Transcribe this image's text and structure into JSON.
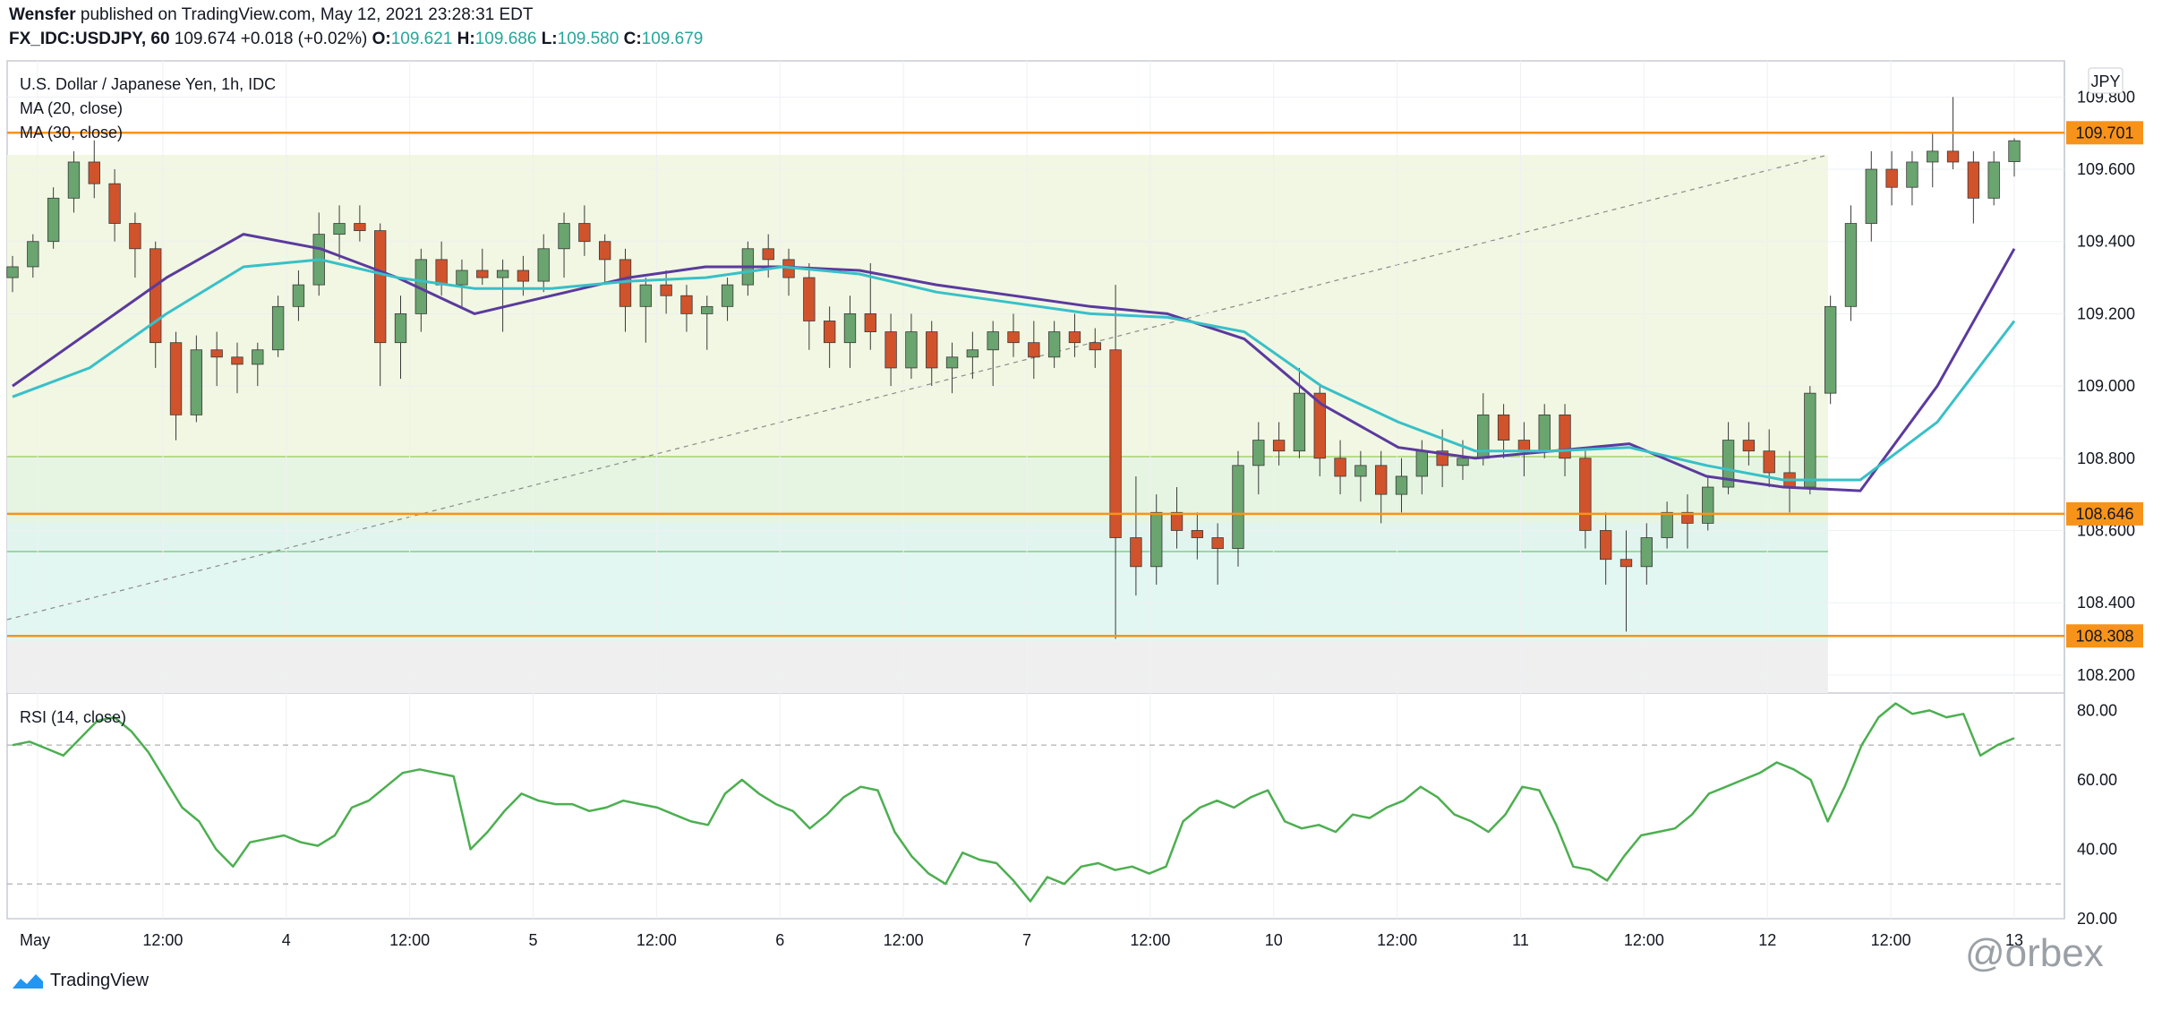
{
  "header": {
    "author": "Wensfer",
    "published_text": "published on TradingView.com, May 12, 2021 23:28:31 EDT",
    "symbol_line": "FX_IDC:USDJPY, 60",
    "price": "109.674",
    "change": "+0.018 (+0.02%)",
    "o_label": "O:",
    "o_value": "109.621",
    "h_label": "H:",
    "h_value": "109.686",
    "l_label": "L:",
    "l_value": "109.580",
    "c_label": "C:",
    "c_value": "109.679"
  },
  "main_pane": {
    "title": "U.S. Dollar / Japanese Yen, 1h, IDC",
    "ma1": "MA (20, close)",
    "ma2": "MA (30, close)",
    "currency": "JPY"
  },
  "rsi_pane": {
    "title": "RSI (14, close)"
  },
  "footer": {
    "brand": "TradingView",
    "watermark": "@orbex"
  },
  "colors": {
    "up": "#6aa46f",
    "down": "#d0532c",
    "ma20": "#5b3a9e",
    "ma30": "#38c0c8",
    "level": "#f7931a",
    "rsi": "#4caf50"
  },
  "chart_data": [
    {
      "type": "candlestick",
      "title": "U.S. Dollar / Japanese Yen, 1h, IDC",
      "ylabel": "JPY",
      "ylim": [
        108.15,
        109.9
      ],
      "y_ticks": [
        "109.800",
        "109.600",
        "109.400",
        "109.200",
        "109.000",
        "108.800",
        "108.600",
        "108.400",
        "108.200"
      ],
      "x_ticks": [
        "May",
        "12:00",
        "4",
        "12:00",
        "5",
        "12:00",
        "6",
        "12:00",
        "7",
        "12:00",
        "10",
        "12:00",
        "11",
        "12:00",
        "12",
        "12:00",
        "13"
      ],
      "price_levels": [
        {
          "label": "109.701",
          "value": 109.701
        },
        {
          "label": "108.646",
          "value": 108.646
        },
        {
          "label": "108.308",
          "value": 108.308
        }
      ],
      "series": [
        {
          "name": "MA (20, close)",
          "values": [
            109.0,
            109.15,
            109.3,
            109.42,
            109.38,
            109.3,
            109.2,
            109.25,
            109.3,
            109.33,
            109.33,
            109.32,
            109.28,
            109.25,
            109.22,
            109.2,
            109.13,
            108.95,
            108.83,
            108.8,
            108.82,
            108.84,
            108.75,
            108.72,
            108.71,
            109.0,
            109.38
          ]
        },
        {
          "name": "MA (30, close)",
          "values": [
            108.97,
            109.05,
            109.2,
            109.33,
            109.35,
            109.3,
            109.27,
            109.27,
            109.29,
            109.3,
            109.33,
            109.31,
            109.26,
            109.23,
            109.2,
            109.19,
            109.15,
            109.0,
            108.9,
            108.82,
            108.82,
            108.83,
            108.78,
            108.74,
            108.74,
            108.9,
            109.18
          ]
        }
      ],
      "ohlc": [
        {
          "o": 109.3,
          "h": 109.36,
          "l": 109.26,
          "c": 109.33
        },
        {
          "o": 109.33,
          "h": 109.42,
          "l": 109.3,
          "c": 109.4
        },
        {
          "o": 109.4,
          "h": 109.55,
          "l": 109.38,
          "c": 109.52
        },
        {
          "o": 109.52,
          "h": 109.65,
          "l": 109.48,
          "c": 109.62
        },
        {
          "o": 109.62,
          "h": 109.68,
          "l": 109.52,
          "c": 109.56
        },
        {
          "o": 109.56,
          "h": 109.6,
          "l": 109.4,
          "c": 109.45
        },
        {
          "o": 109.45,
          "h": 109.48,
          "l": 109.3,
          "c": 109.38
        },
        {
          "o": 109.38,
          "h": 109.4,
          "l": 109.05,
          "c": 109.12
        },
        {
          "o": 109.12,
          "h": 109.15,
          "l": 108.85,
          "c": 108.92
        },
        {
          "o": 108.92,
          "h": 109.14,
          "l": 108.9,
          "c": 109.1
        },
        {
          "o": 109.1,
          "h": 109.15,
          "l": 109.0,
          "c": 109.08
        },
        {
          "o": 109.08,
          "h": 109.12,
          "l": 108.98,
          "c": 109.06
        },
        {
          "o": 109.06,
          "h": 109.12,
          "l": 109.0,
          "c": 109.1
        },
        {
          "o": 109.1,
          "h": 109.25,
          "l": 109.08,
          "c": 109.22
        },
        {
          "o": 109.22,
          "h": 109.32,
          "l": 109.18,
          "c": 109.28
        },
        {
          "o": 109.28,
          "h": 109.48,
          "l": 109.25,
          "c": 109.42
        },
        {
          "o": 109.42,
          "h": 109.5,
          "l": 109.35,
          "c": 109.45
        },
        {
          "o": 109.45,
          "h": 109.5,
          "l": 109.4,
          "c": 109.43
        },
        {
          "o": 109.43,
          "h": 109.45,
          "l": 109.0,
          "c": 109.12
        },
        {
          "o": 109.12,
          "h": 109.25,
          "l": 109.02,
          "c": 109.2
        },
        {
          "o": 109.2,
          "h": 109.38,
          "l": 109.15,
          "c": 109.35
        },
        {
          "o": 109.35,
          "h": 109.4,
          "l": 109.25,
          "c": 109.28
        },
        {
          "o": 109.28,
          "h": 109.35,
          "l": 109.22,
          "c": 109.32
        },
        {
          "o": 109.32,
          "h": 109.38,
          "l": 109.28,
          "c": 109.3
        },
        {
          "o": 109.3,
          "h": 109.35,
          "l": 109.15,
          "c": 109.32
        },
        {
          "o": 109.32,
          "h": 109.36,
          "l": 109.25,
          "c": 109.29
        },
        {
          "o": 109.29,
          "h": 109.42,
          "l": 109.26,
          "c": 109.38
        },
        {
          "o": 109.38,
          "h": 109.48,
          "l": 109.3,
          "c": 109.45
        },
        {
          "o": 109.45,
          "h": 109.5,
          "l": 109.36,
          "c": 109.4
        },
        {
          "o": 109.4,
          "h": 109.42,
          "l": 109.28,
          "c": 109.35
        },
        {
          "o": 109.35,
          "h": 109.38,
          "l": 109.15,
          "c": 109.22
        },
        {
          "o": 109.22,
          "h": 109.3,
          "l": 109.12,
          "c": 109.28
        },
        {
          "o": 109.28,
          "h": 109.32,
          "l": 109.2,
          "c": 109.25
        },
        {
          "o": 109.25,
          "h": 109.28,
          "l": 109.15,
          "c": 109.2
        },
        {
          "o": 109.2,
          "h": 109.25,
          "l": 109.1,
          "c": 109.22
        },
        {
          "o": 109.22,
          "h": 109.3,
          "l": 109.18,
          "c": 109.28
        },
        {
          "o": 109.28,
          "h": 109.4,
          "l": 109.25,
          "c": 109.38
        },
        {
          "o": 109.38,
          "h": 109.42,
          "l": 109.3,
          "c": 109.35
        },
        {
          "o": 109.35,
          "h": 109.38,
          "l": 109.25,
          "c": 109.3
        },
        {
          "o": 109.3,
          "h": 109.34,
          "l": 109.1,
          "c": 109.18
        },
        {
          "o": 109.18,
          "h": 109.22,
          "l": 109.05,
          "c": 109.12
        },
        {
          "o": 109.12,
          "h": 109.25,
          "l": 109.05,
          "c": 109.2
        },
        {
          "o": 109.2,
          "h": 109.34,
          "l": 109.1,
          "c": 109.15
        },
        {
          "o": 109.15,
          "h": 109.2,
          "l": 109.0,
          "c": 109.05
        },
        {
          "o": 109.05,
          "h": 109.2,
          "l": 109.02,
          "c": 109.15
        },
        {
          "o": 109.15,
          "h": 109.18,
          "l": 109.0,
          "c": 109.05
        },
        {
          "o": 109.05,
          "h": 109.12,
          "l": 108.98,
          "c": 109.08
        },
        {
          "o": 109.08,
          "h": 109.15,
          "l": 109.02,
          "c": 109.1
        },
        {
          "o": 109.1,
          "h": 109.18,
          "l": 109.0,
          "c": 109.15
        },
        {
          "o": 109.15,
          "h": 109.2,
          "l": 109.08,
          "c": 109.12
        },
        {
          "o": 109.12,
          "h": 109.18,
          "l": 109.02,
          "c": 109.08
        },
        {
          "o": 109.08,
          "h": 109.18,
          "l": 109.05,
          "c": 109.15
        },
        {
          "o": 109.15,
          "h": 109.2,
          "l": 109.08,
          "c": 109.12
        },
        {
          "o": 109.12,
          "h": 109.16,
          "l": 109.05,
          "c": 109.1
        },
        {
          "o": 109.1,
          "h": 109.28,
          "l": 108.3,
          "c": 108.58
        },
        {
          "o": 108.58,
          "h": 108.75,
          "l": 108.42,
          "c": 108.5
        },
        {
          "o": 108.5,
          "h": 108.7,
          "l": 108.45,
          "c": 108.65
        },
        {
          "o": 108.65,
          "h": 108.72,
          "l": 108.55,
          "c": 108.6
        },
        {
          "o": 108.6,
          "h": 108.65,
          "l": 108.52,
          "c": 108.58
        },
        {
          "o": 108.58,
          "h": 108.62,
          "l": 108.45,
          "c": 108.55
        },
        {
          "o": 108.55,
          "h": 108.82,
          "l": 108.5,
          "c": 108.78
        },
        {
          "o": 108.78,
          "h": 108.9,
          "l": 108.7,
          "c": 108.85
        },
        {
          "o": 108.85,
          "h": 108.9,
          "l": 108.78,
          "c": 108.82
        },
        {
          "o": 108.82,
          "h": 109.05,
          "l": 108.8,
          "c": 108.98
        },
        {
          "o": 108.98,
          "h": 109.0,
          "l": 108.75,
          "c": 108.8
        },
        {
          "o": 108.8,
          "h": 108.85,
          "l": 108.7,
          "c": 108.75
        },
        {
          "o": 108.75,
          "h": 108.82,
          "l": 108.68,
          "c": 108.78
        },
        {
          "o": 108.78,
          "h": 108.82,
          "l": 108.62,
          "c": 108.7
        },
        {
          "o": 108.7,
          "h": 108.8,
          "l": 108.65,
          "c": 108.75
        },
        {
          "o": 108.75,
          "h": 108.85,
          "l": 108.7,
          "c": 108.82
        },
        {
          "o": 108.82,
          "h": 108.88,
          "l": 108.72,
          "c": 108.78
        },
        {
          "o": 108.78,
          "h": 108.85,
          "l": 108.74,
          "c": 108.8
        },
        {
          "o": 108.8,
          "h": 108.98,
          "l": 108.78,
          "c": 108.92
        },
        {
          "o": 108.92,
          "h": 108.95,
          "l": 108.8,
          "c": 108.85
        },
        {
          "o": 108.85,
          "h": 108.9,
          "l": 108.75,
          "c": 108.82
        },
        {
          "o": 108.82,
          "h": 108.95,
          "l": 108.8,
          "c": 108.92
        },
        {
          "o": 108.92,
          "h": 108.95,
          "l": 108.75,
          "c": 108.8
        },
        {
          "o": 108.8,
          "h": 108.82,
          "l": 108.55,
          "c": 108.6
        },
        {
          "o": 108.6,
          "h": 108.65,
          "l": 108.45,
          "c": 108.52
        },
        {
          "o": 108.52,
          "h": 108.6,
          "l": 108.32,
          "c": 108.5
        },
        {
          "o": 108.5,
          "h": 108.62,
          "l": 108.45,
          "c": 108.58
        },
        {
          "o": 108.58,
          "h": 108.68,
          "l": 108.55,
          "c": 108.65
        },
        {
          "o": 108.65,
          "h": 108.7,
          "l": 108.55,
          "c": 108.62
        },
        {
          "o": 108.62,
          "h": 108.75,
          "l": 108.6,
          "c": 108.72
        },
        {
          "o": 108.72,
          "h": 108.9,
          "l": 108.7,
          "c": 108.85
        },
        {
          "o": 108.85,
          "h": 108.9,
          "l": 108.78,
          "c": 108.82
        },
        {
          "o": 108.82,
          "h": 108.88,
          "l": 108.72,
          "c": 108.76
        },
        {
          "o": 108.76,
          "h": 108.82,
          "l": 108.65,
          "c": 108.72
        },
        {
          "o": 108.72,
          "h": 109.0,
          "l": 108.7,
          "c": 108.98
        },
        {
          "o": 108.98,
          "h": 109.25,
          "l": 108.95,
          "c": 109.22
        },
        {
          "o": 109.22,
          "h": 109.5,
          "l": 109.18,
          "c": 109.45
        },
        {
          "o": 109.45,
          "h": 109.65,
          "l": 109.4,
          "c": 109.6
        },
        {
          "o": 109.6,
          "h": 109.65,
          "l": 109.5,
          "c": 109.55
        },
        {
          "o": 109.55,
          "h": 109.65,
          "l": 109.5,
          "c": 109.62
        },
        {
          "o": 109.62,
          "h": 109.7,
          "l": 109.55,
          "c": 109.65
        },
        {
          "o": 109.65,
          "h": 109.8,
          "l": 109.6,
          "c": 109.62
        },
        {
          "o": 109.62,
          "h": 109.65,
          "l": 109.45,
          "c": 109.52
        },
        {
          "o": 109.52,
          "h": 109.65,
          "l": 109.5,
          "c": 109.62
        },
        {
          "o": 109.621,
          "h": 109.686,
          "l": 109.58,
          "c": 109.679
        }
      ]
    },
    {
      "type": "line",
      "title": "RSI (14, close)",
      "ylim": [
        20,
        85
      ],
      "y_ticks": [
        "80.00",
        "60.00",
        "40.00",
        "20.00"
      ],
      "reference_lines": [
        70,
        30
      ],
      "series": [
        {
          "name": "RSI (14, close)",
          "values": [
            70,
            71,
            69,
            67,
            72,
            77,
            78,
            74,
            68,
            60,
            52,
            48,
            40,
            35,
            42,
            43,
            44,
            42,
            41,
            44,
            52,
            54,
            58,
            62,
            63,
            62,
            61,
            40,
            45,
            51,
            56,
            54,
            53,
            53,
            51,
            52,
            54,
            53,
            52,
            50,
            48,
            47,
            56,
            60,
            56,
            53,
            51,
            46,
            50,
            55,
            58,
            57,
            45,
            38,
            33,
            30,
            39,
            37,
            36,
            31,
            25,
            32,
            30,
            35,
            36,
            34,
            35,
            33,
            35,
            48,
            52,
            54,
            52,
            55,
            57,
            48,
            46,
            47,
            45,
            50,
            49,
            52,
            54,
            58,
            55,
            50,
            48,
            45,
            50,
            58,
            57,
            47,
            35,
            34,
            31,
            38,
            44,
            45,
            46,
            50,
            56,
            58,
            60,
            62,
            65,
            63,
            60,
            48,
            58,
            70,
            78,
            82,
            79,
            80,
            78,
            79,
            67,
            70,
            72
          ]
        }
      ]
    }
  ]
}
